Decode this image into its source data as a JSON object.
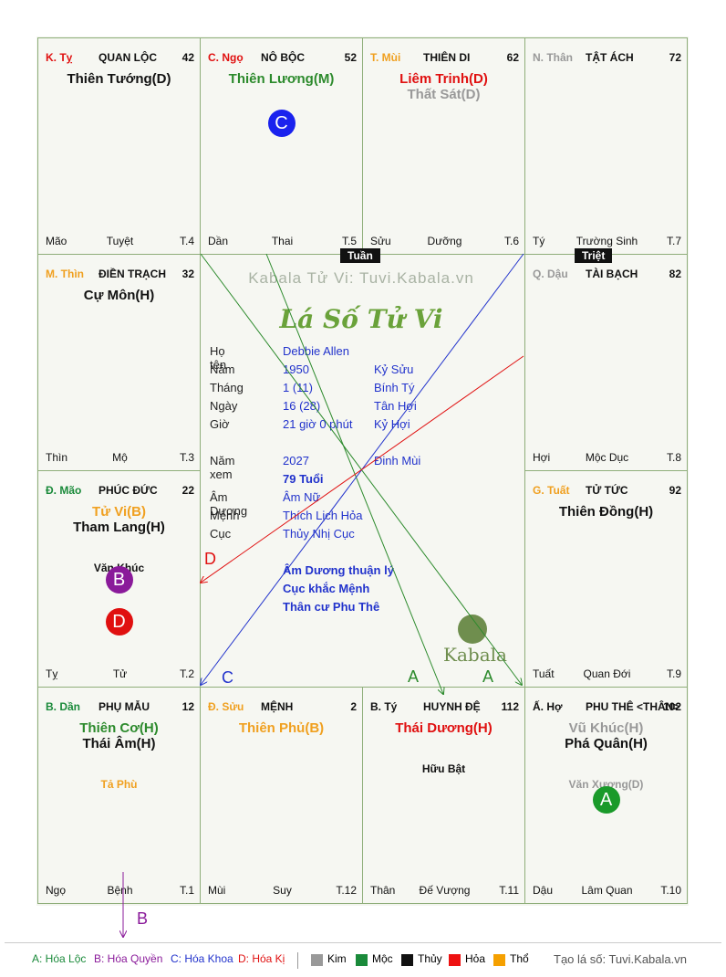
{
  "watermark": "Kabala Tử Vi: Tuvi.Kabala.vn",
  "chart_title": "Lá Số Tử Vi",
  "logo_text": "Kabala",
  "tuan_label": "Tuần",
  "triet_label": "Triệt",
  "palaces": {
    "ty_snake": {
      "can": "K. Tỵ",
      "name": "QUAN LỘC",
      "num": "42",
      "stars": [
        {
          "t": "Thiên Tướng(D)",
          "c": "black"
        }
      ],
      "foot": [
        "Mão",
        "Tuyệt",
        "T.4"
      ]
    },
    "ngo": {
      "can": "C. Ngọ",
      "name": "NÔ BỘC",
      "num": "52",
      "stars": [
        {
          "t": "Thiên Lương(M)",
          "c": "green"
        }
      ],
      "badge": "C",
      "foot": [
        "Dần",
        "Thai",
        "T.5"
      ]
    },
    "mui": {
      "can": "T. Mùi",
      "name": "THIÊN DI",
      "num": "62",
      "stars": [
        {
          "t": "Liêm Trinh(D)",
          "c": "red"
        },
        {
          "t": "Thất Sát(D)",
          "c": "gray"
        }
      ],
      "foot": [
        "Sửu",
        "Dưỡng",
        "T.6"
      ]
    },
    "than_monkey": {
      "can": "N. Thân",
      "name": "TẬT ÁCH",
      "num": "72",
      "stars": [],
      "foot": [
        "Tý",
        "Trường Sinh",
        "T.7"
      ]
    },
    "thin": {
      "can": "M. Thìn",
      "name": "ĐIỀN TRẠCH",
      "num": "32",
      "stars": [
        {
          "t": "Cự Môn(H)",
          "c": "black"
        }
      ],
      "foot": [
        "Thìn",
        "Mộ",
        "T.3"
      ]
    },
    "dau": {
      "can": "Q. Dậu",
      "name": "TÀI BẠCH",
      "num": "82",
      "stars": [],
      "foot": [
        "Hợi",
        "Mộc Dục",
        "T.8"
      ]
    },
    "mao": {
      "can": "Đ. Mão",
      "name": "PHÚC ĐỨC",
      "num": "22",
      "stars": [
        {
          "t": "Tử Vi(B)",
          "c": "orange"
        },
        {
          "t": "Tham Lang(H)",
          "c": "black"
        }
      ],
      "minor": "Văn Khúc",
      "badges": [
        "B",
        "D"
      ],
      "foot": [
        "Tỵ",
        "Tử",
        "T.2"
      ]
    },
    "tuat": {
      "can": "G. Tuất",
      "name": "TỬ TỨC",
      "num": "92",
      "stars": [
        {
          "t": "Thiên Đồng(H)",
          "c": "black"
        }
      ],
      "foot": [
        "Tuất",
        "Quan Đới",
        "T.9"
      ]
    },
    "dan": {
      "can": "B. Dần",
      "name": "PHỤ MẪU",
      "num": "12",
      "stars": [
        {
          "t": "Thiên Cơ(H)",
          "c": "green"
        },
        {
          "t": "Thái Âm(H)",
          "c": "black"
        }
      ],
      "minor": "Tả Phù",
      "foot": [
        "Ngọ",
        "Bệnh",
        "T.1"
      ]
    },
    "suu": {
      "can": "Đ. Sửu",
      "name": "MỆNH",
      "num": "2",
      "stars": [
        {
          "t": "Thiên Phủ(B)",
          "c": "orange"
        }
      ],
      "foot": [
        "Mùi",
        "Suy",
        "T.12"
      ]
    },
    "ty_rat": {
      "can": "B. Tý",
      "name": "HUYNH ĐỆ",
      "num": "112",
      "stars": [
        {
          "t": "Thái Dương(H)",
          "c": "red"
        }
      ],
      "minor": "Hữu Bật",
      "foot": [
        "Thân",
        "Đế Vượng",
        "T.11"
      ]
    },
    "hoi": {
      "can": "Ấ. Hợ",
      "name": "PHU THÊ <THÂN>",
      "num": "102",
      "stars": [
        {
          "t": "Vũ Khúc(H)",
          "c": "gray"
        },
        {
          "t": "Phá Quân(H)",
          "c": "black"
        }
      ],
      "minor": "Văn Xương(D)",
      "badges": [
        "A"
      ],
      "foot": [
        "Dậu",
        "Lâm Quan",
        "T.10"
      ]
    }
  },
  "info": {
    "name_label": "Họ tên",
    "name": "Debbie Allen",
    "year_label": "Năm",
    "year": "1950",
    "year_cc": "Kỷ Sửu",
    "month_label": "Tháng",
    "month": "1  (11)",
    "month_cc": "Bính Tý",
    "day_label": "Ngày",
    "day": "16  (28)",
    "day_cc": "Tân Hợi",
    "hour_label": "Giờ",
    "hour": "21 giờ 0 phút",
    "hour_cc": "Kỷ Hợi",
    "view_label": "Năm xem",
    "view_year": "2027",
    "view_cc": "Đinh Mùi",
    "age": "79 Tuổi",
    "amduong_label": "Âm Dương",
    "amduong": "Âm Nữ",
    "menh_label": "Mệnh",
    "menh": "Thích Lịch Hỏa",
    "cuc_label": "Cục",
    "cuc": "Thủy Nhị Cục",
    "note1": "Âm Dương thuận lý",
    "note2": "Cục khắc Mệnh",
    "note3": "Thân cư Phu Thê"
  },
  "arrow_labels": {
    "A1": "A",
    "A2": "A",
    "B": "B",
    "C": "C",
    "D": "D"
  },
  "legend": {
    "a": "A: Hóa Lộc",
    "b": "B: Hóa Quyền",
    "c": "C: Hóa Khoa",
    "d": "D: Hóa Kị",
    "kim": "Kim",
    "moc": "Mộc",
    "thuy": "Thủy",
    "hoa": "Hỏa",
    "tho": "Thổ",
    "site": "Tạo lá số: Tuvi.Kabala.vn",
    "colors": {
      "kim": "#999999",
      "moc": "#1a8a3a",
      "thuy": "#111111",
      "hoa": "#ee1111",
      "tho": "#f5a000"
    }
  }
}
